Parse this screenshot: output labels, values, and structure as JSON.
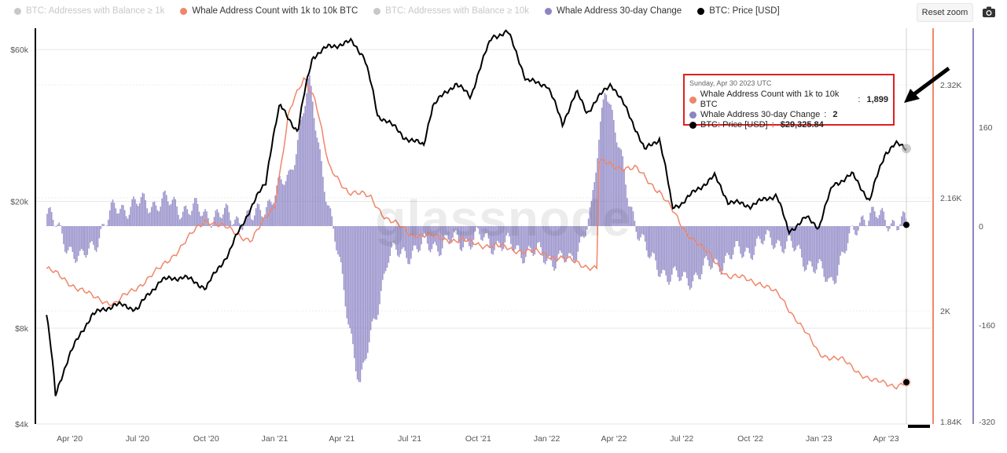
{
  "legend": [
    {
      "label": "BTC: Addresses with Balance ≥ 1k",
      "color": "#7cb5ec",
      "active": false
    },
    {
      "label": "Whale Address Count with 1k to 10k BTC",
      "color": "#f0866a",
      "active": true
    },
    {
      "label": "BTC: Addresses with Balance ≥ 10k",
      "color": "#f0866a",
      "active": false
    },
    {
      "label": "Whale Address 30-day Change",
      "color": "#8c84c4",
      "active": true
    },
    {
      "label": "BTC: Price [USD]",
      "color": "#000000",
      "active": true
    }
  ],
  "toolbar": {
    "reset_zoom": "Reset zoom",
    "camera_icon": "camera-icon"
  },
  "watermark": "glassnode",
  "tooltip": {
    "date": "Sunday, Apr 30 2023 UTC",
    "rows": [
      {
        "name": "Whale Address Count with 1k to 10k BTC",
        "value": "1,899",
        "color": "#f0866a"
      },
      {
        "name": "Whale Address 30-day Change",
        "value": "2",
        "color": "#8c84c4"
      },
      {
        "name": "BTC: Price [USD]",
        "value": "$29,325.84",
        "color": "#000000"
      }
    ]
  },
  "chart_data": {
    "type": "line",
    "x_ticks": [
      "Apr '20",
      "Jul '20",
      "Oct '20",
      "Jan '21",
      "Apr '21",
      "Jul '21",
      "Oct '21",
      "Jan '22",
      "Apr '22",
      "Jul '22",
      "Oct '22",
      "Jan '23",
      "Apr '23"
    ],
    "y_left": {
      "label": "BTC: Price [USD]",
      "scale": "log",
      "ticks": [
        "$4k",
        "$8k",
        "$20k",
        "$60k"
      ],
      "range": [
        4000,
        70000
      ]
    },
    "y_right1": {
      "label": "Whale Address Count",
      "ticks": [
        "1.84K",
        "2K",
        "2.16K",
        "2.32K"
      ],
      "range": [
        1840,
        2400
      ]
    },
    "y_right2": {
      "label": "Whale Address 30-day Change",
      "ticks": [
        "-320",
        "-160",
        "0",
        "160"
      ],
      "range": [
        -320,
        320
      ]
    },
    "series": [
      {
        "name": "BTC: Price [USD]",
        "color": "#000000",
        "dates": [
          "2020-03-01",
          "2020-03-13",
          "2020-04-01",
          "2020-05-01",
          "2020-06-01",
          "2020-07-01",
          "2020-08-01",
          "2020-09-01",
          "2020-10-01",
          "2020-11-01",
          "2020-12-01",
          "2020-12-20",
          "2021-01-08",
          "2021-02-01",
          "2021-02-21",
          "2021-03-13",
          "2021-04-14",
          "2021-05-01",
          "2021-05-19",
          "2021-06-01",
          "2021-06-22",
          "2021-07-20",
          "2021-08-01",
          "2021-09-01",
          "2021-09-21",
          "2021-10-20",
          "2021-11-10",
          "2021-12-04",
          "2022-01-01",
          "2022-01-22",
          "2022-02-10",
          "2022-02-24",
          "2022-03-28",
          "2022-04-15",
          "2022-05-12",
          "2022-06-01",
          "2022-06-18",
          "2022-07-01",
          "2022-08-14",
          "2022-09-01",
          "2022-10-01",
          "2022-11-05",
          "2022-11-21",
          "2022-12-15",
          "2023-01-01",
          "2023-01-20",
          "2023-02-15",
          "2023-03-10",
          "2023-03-31",
          "2023-04-14",
          "2023-04-30"
        ],
        "values": [
          8800,
          4900,
          6600,
          8800,
          9500,
          9200,
          11300,
          11600,
          10700,
          13800,
          19200,
          23000,
          40000,
          33000,
          57000,
          61000,
          63500,
          57000,
          37000,
          36000,
          32000,
          30000,
          40000,
          47000,
          42500,
          66000,
          68000,
          48000,
          46500,
          35000,
          44000,
          38000,
          47000,
          40000,
          29000,
          31500,
          19000,
          19800,
          24000,
          20000,
          19400,
          21000,
          16000,
          17800,
          16600,
          22500,
          24300,
          20000,
          28400,
          30300,
          29325
        ]
      },
      {
        "name": "Whale Address Count with 1k to 10k BTC",
        "color": "#f0866a",
        "dates": [
          "2020-03-01",
          "2020-04-01",
          "2020-05-01",
          "2020-06-01",
          "2020-08-01",
          "2020-10-01",
          "2020-12-01",
          "2021-01-01",
          "2021-01-20",
          "2021-02-10",
          "2021-02-25",
          "2021-03-15",
          "2021-04-10",
          "2021-05-10",
          "2021-06-01",
          "2021-07-01",
          "2021-09-01",
          "2021-11-01",
          "2022-01-01",
          "2022-03-10",
          "2022-03-12",
          "2022-05-01",
          "2022-06-01",
          "2022-07-01",
          "2022-09-01",
          "2022-10-15",
          "2022-11-10",
          "2022-12-01",
          "2023-01-01",
          "2023-02-01",
          "2023-03-15",
          "2023-04-15",
          "2023-04-30"
        ],
        "values": [
          2060,
          2040,
          2020,
          2010,
          2060,
          2130,
          2100,
          2150,
          2280,
          2330,
          2300,
          2200,
          2170,
          2160,
          2130,
          2110,
          2100,
          2090,
          2080,
          2060,
          2210,
          2200,
          2170,
          2120,
          2050,
          2040,
          2020,
          1990,
          1940,
          1930,
          1900,
          1895,
          1899
        ]
      },
      {
        "name": "Whale Address 30-day Change",
        "color": "#8c84c4",
        "dates": [
          "2020-03-01",
          "2020-04-15",
          "2020-06-01",
          "2020-08-01",
          "2020-10-01",
          "2020-12-01",
          "2021-01-20",
          "2021-02-15",
          "2021-03-10",
          "2021-04-05",
          "2021-04-25",
          "2021-06-01",
          "2021-08-01",
          "2021-10-01",
          "2021-12-01",
          "2022-02-01",
          "2022-03-01",
          "2022-03-20",
          "2022-04-20",
          "2022-05-20",
          "2022-07-01",
          "2022-09-01",
          "2022-11-01",
          "2022-12-01",
          "2023-01-15",
          "2023-03-01",
          "2023-04-30"
        ],
        "values": [
          20,
          -60,
          30,
          40,
          20,
          10,
          80,
          230,
          60,
          -120,
          -260,
          -50,
          -30,
          -20,
          -40,
          -60,
          20,
          240,
          40,
          -60,
          -90,
          -50,
          -20,
          -40,
          -90,
          20,
          2
        ]
      }
    ]
  }
}
